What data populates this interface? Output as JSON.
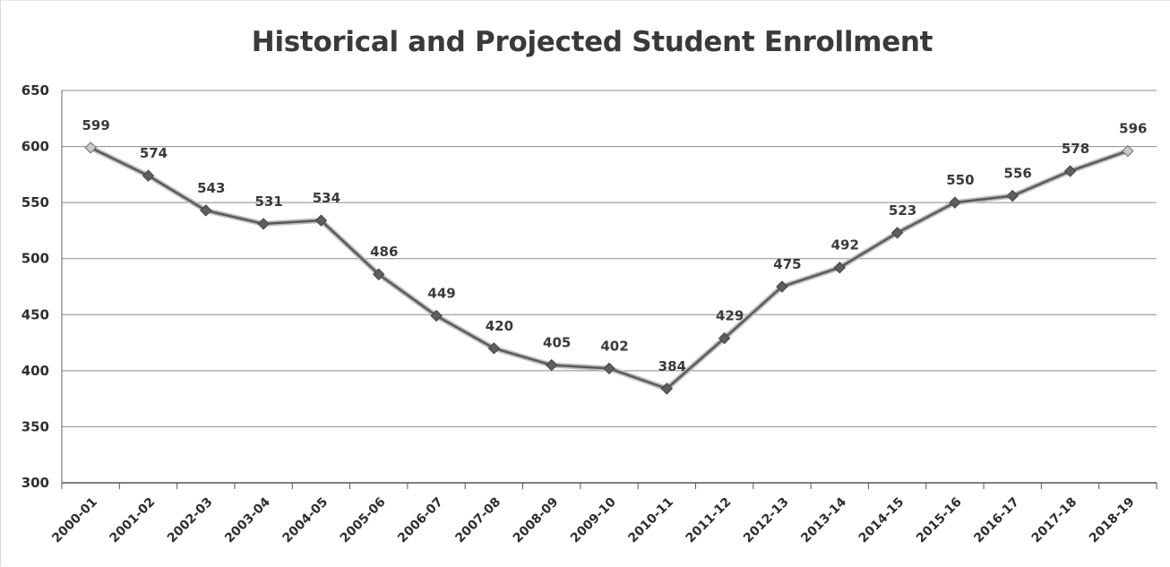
{
  "chart_data": {
    "type": "line",
    "title": "Historical and Projected Student Enrollment",
    "xlabel": "",
    "ylabel": "",
    "ylim": [
      300,
      650
    ],
    "yticks": [
      300,
      350,
      400,
      450,
      500,
      550,
      600,
      650
    ],
    "grid": true,
    "legend": "none",
    "categories": [
      "2000-01",
      "2001-02",
      "2002-03",
      "2003-04",
      "2004-05",
      "2005-06",
      "2006-07",
      "2007-08",
      "2008-09",
      "2009-10",
      "2010-11",
      "2011-12",
      "2012-13",
      "2013-14",
      "2014-15",
      "2015-16",
      "2016-17",
      "2017-18",
      "2018-19"
    ],
    "series": [
      {
        "values": [
          599,
          574,
          543,
          531,
          534,
          486,
          449,
          420,
          405,
          402,
          384,
          429,
          475,
          492,
          523,
          550,
          556,
          578,
          596
        ],
        "color": "#5a5a5a"
      }
    ],
    "data_labels": [
      "599",
      "574",
      "543",
      "531",
      "534",
      "486",
      "449",
      "420",
      "405",
      "402",
      "384",
      "429",
      "475",
      "492",
      "523",
      "550",
      "556",
      "578",
      "596"
    ]
  }
}
